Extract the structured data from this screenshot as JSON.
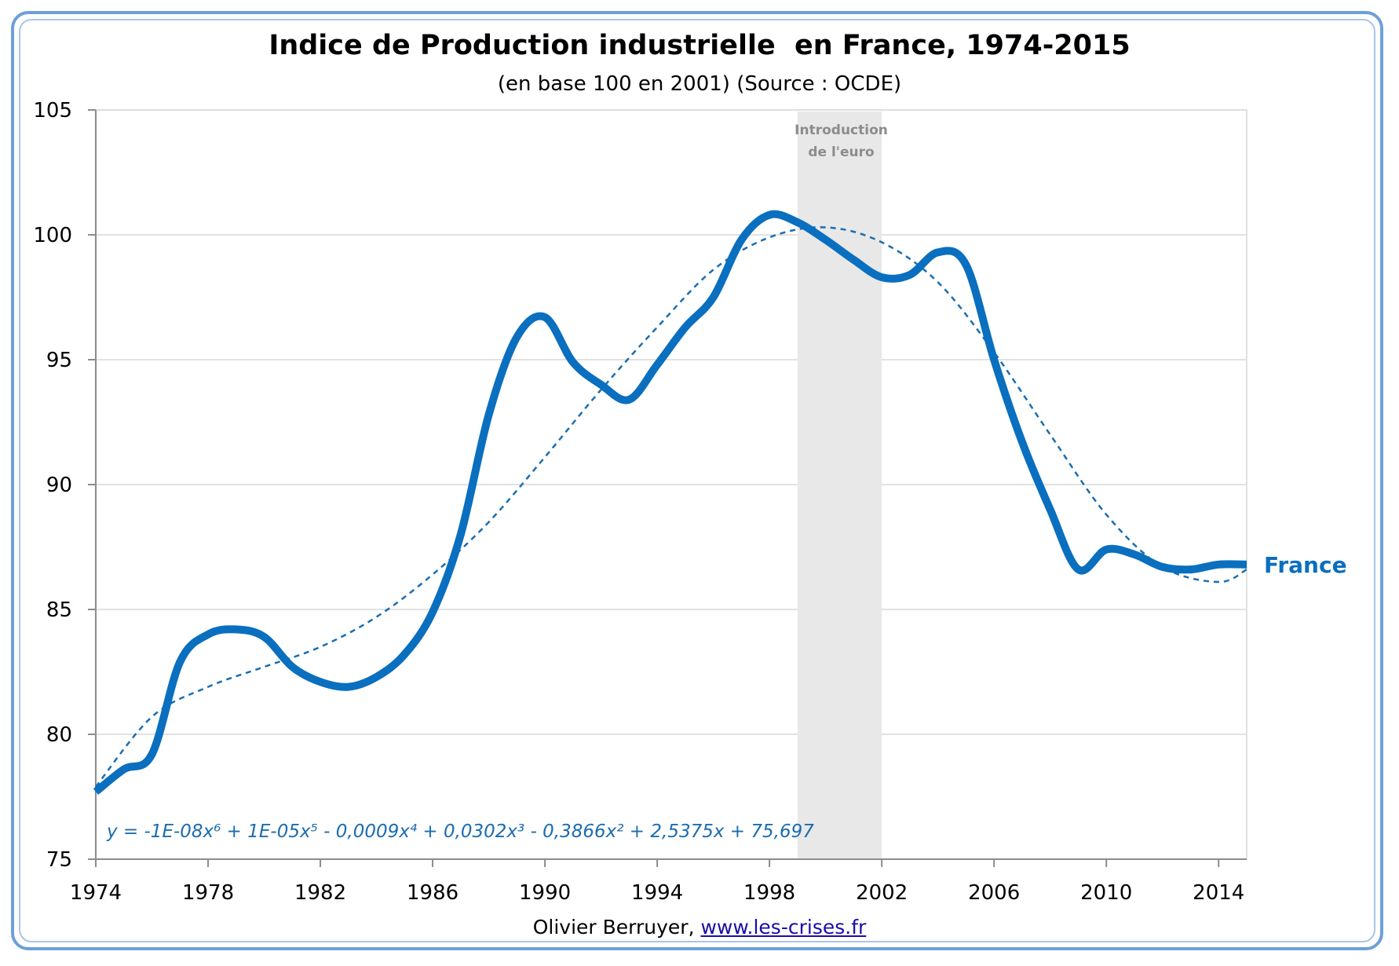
{
  "page": {
    "title": "Indice de Production industrielle  en France, 1974-2015",
    "subtitle": "(en base 100 en 2001) (Source : OCDE)",
    "footer_author": "Olivier Berruyer, ",
    "footer_link": "www.les-crises.fr"
  },
  "chart_data": {
    "type": "line",
    "title": "Indice de Production industrielle  en France, 1974-2015",
    "subtitle": "(en base 100 en 2001) (Source : OCDE)",
    "xlabel": "",
    "ylabel": "",
    "xlim": [
      1974,
      2015
    ],
    "ylim": [
      75,
      105
    ],
    "x_ticks": [
      1974,
      1978,
      1982,
      1986,
      1990,
      1994,
      1998,
      2002,
      2006,
      2010,
      2014
    ],
    "y_ticks": [
      75,
      80,
      85,
      90,
      95,
      100,
      105
    ],
    "grid": true,
    "series": [
      {
        "name": "France",
        "color": "#0b6fbf",
        "x": [
          1974,
          1975,
          1976,
          1977,
          1978,
          1979,
          1980,
          1981,
          1982,
          1983,
          1984,
          1985,
          1986,
          1987,
          1988,
          1989,
          1990,
          1991,
          1992,
          1993,
          1994,
          1995,
          1996,
          1997,
          1998,
          1999,
          2000,
          2001,
          2002,
          2003,
          2004,
          2005,
          2006,
          2007,
          2008,
          2009,
          2010,
          2011,
          2012,
          2013,
          2014,
          2015
        ],
        "values": [
          77.7,
          78.6,
          79.2,
          82.9,
          84.0,
          84.2,
          83.9,
          82.7,
          82.1,
          81.9,
          82.3,
          83.2,
          84.9,
          88.0,
          92.8,
          95.9,
          96.7,
          94.9,
          94.0,
          93.4,
          94.8,
          96.3,
          97.5,
          99.8,
          100.8,
          100.5,
          99.8,
          99.0,
          98.3,
          98.4,
          99.3,
          98.8,
          95.0,
          91.7,
          89.0,
          86.6,
          87.4,
          87.2,
          86.7,
          86.6,
          86.8,
          86.8
        ]
      }
    ],
    "trendline": {
      "style": "dashed",
      "type": "polynomial",
      "order": 6,
      "equation": "y = -1E-08x⁶ + 1E-05x⁵ - 0,0009x⁴ + 0,0302x³ - 0,3866x² + 2,5375x + 75,697",
      "x": [
        1974,
        1976,
        1978,
        1980,
        1982,
        1984,
        1986,
        1988,
        1990,
        1992,
        1994,
        1996,
        1998,
        2000,
        2002,
        2004,
        2006,
        2008,
        2010,
        2012,
        2014,
        2015
      ],
      "values": [
        77.9,
        80.7,
        81.9,
        82.7,
        83.5,
        84.7,
        86.4,
        88.5,
        91.1,
        93.8,
        96.3,
        98.6,
        99.9,
        100.3,
        99.7,
        98.1,
        95.3,
        92.0,
        88.8,
        86.7,
        86.1,
        86.6
      ]
    },
    "annotation": {
      "label_line1": "Introduction",
      "label_line2": "de l'euro",
      "x_start": 1999,
      "x_end": 2002,
      "color": "#e8e8e8"
    },
    "series_label": "France"
  }
}
